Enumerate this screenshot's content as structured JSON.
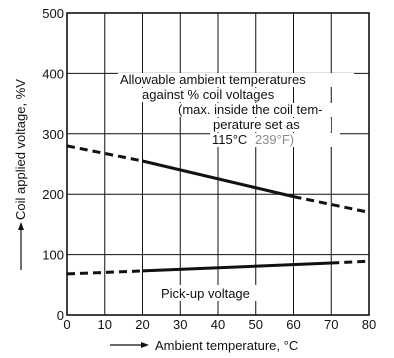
{
  "chart_data": {
    "type": "line",
    "title": "",
    "xlabel": "Ambient temperature, °C",
    "ylabel": "Coil applied voltage, %V",
    "xlim": [
      0,
      80
    ],
    "ylim": [
      0,
      500
    ],
    "x_ticks": [
      "0",
      "10",
      "20",
      "30",
      "40",
      "50",
      "60",
      "70",
      "80"
    ],
    "y_ticks": [
      "0",
      "100",
      "200",
      "300",
      "400",
      "500"
    ],
    "grid": true,
    "series": [
      {
        "name": "",
        "solid_segment": {
          "x": [
            20,
            60
          ],
          "y": [
            255,
            196
          ]
        },
        "dashed_segments": [
          {
            "x": [
              0,
              20
            ],
            "y": [
              280,
              255
            ]
          },
          {
            "x": [
              60,
              80
            ],
            "y": [
              196,
              170
            ]
          }
        ]
      },
      {
        "name": "",
        "solid_segment": {
          "x": [
            20,
            70
          ],
          "y": [
            73,
            86
          ]
        },
        "dashed_segments": [
          {
            "x": [
              0,
              20
            ],
            "y": [
              68,
              73
            ]
          },
          {
            "x": [
              70,
              80
            ],
            "y": [
              86,
              89
            ]
          }
        ]
      }
    ],
    "annotations": {
      "upper_line1": "Allowable ambient temperatures",
      "upper_line2": "against % coil voltages",
      "upper_line3": "(max. inside the coil tem-",
      "upper_line4": "perature set as",
      "upper_line5_c": "115°C",
      "upper_line5_f": "239°F)",
      "lower": "Pick-up voltage"
    },
    "colors": {
      "line": "#111111",
      "grid": "#111111",
      "fahrenheit_text": "#8c8c8c"
    }
  }
}
